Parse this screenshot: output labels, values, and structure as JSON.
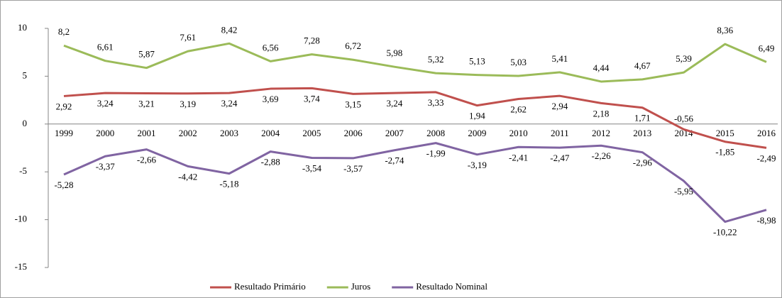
{
  "chart_data": {
    "type": "line",
    "categories": [
      "1999",
      "2000",
      "2001",
      "2002",
      "2003",
      "2004",
      "2005",
      "2006",
      "2007",
      "2008",
      "2009",
      "2010",
      "2011",
      "2012",
      "2013",
      "2014",
      "2015",
      "2016"
    ],
    "series": [
      {
        "name": "Resultado Primário",
        "color": "#c0504d",
        "values": [
          2.92,
          3.24,
          3.21,
          3.19,
          3.24,
          3.69,
          3.74,
          3.15,
          3.24,
          3.33,
          1.94,
          2.62,
          2.94,
          2.18,
          1.71,
          -0.56,
          -1.85,
          -2.49
        ],
        "value_labels": [
          "2,92",
          "3,24",
          "3,21",
          "3,19",
          "3,24",
          "3,69",
          "3,74",
          "3,15",
          "3,24",
          "3,33",
          "1,94",
          "2,62",
          "2,94",
          "2,18",
          "1,71",
          "-0,56",
          "-1,85",
          "-2,49"
        ]
      },
      {
        "name": "Juros",
        "color": "#9bbb59",
        "values": [
          8.2,
          6.61,
          5.87,
          7.61,
          8.42,
          6.56,
          7.28,
          6.72,
          5.98,
          5.32,
          5.13,
          5.03,
          5.41,
          4.44,
          4.67,
          5.39,
          8.36,
          6.49
        ],
        "value_labels": [
          "8,2",
          "6,61",
          "5,87",
          "7,61",
          "8,42",
          "6,56",
          "7,28",
          "6,72",
          "5,98",
          "5,32",
          "5,13",
          "5,03",
          "5,41",
          "4,44",
          "4,67",
          "5,39",
          "8,36",
          "6,49"
        ]
      },
      {
        "name": "Resultado Nominal",
        "color": "#8064a2",
        "values": [
          -5.28,
          -3.37,
          -2.66,
          -4.42,
          -5.18,
          -2.88,
          -3.54,
          -3.57,
          -2.74,
          -1.99,
          -3.19,
          -2.41,
          -2.47,
          -2.26,
          -2.96,
          -5.95,
          -10.22,
          -8.98
        ],
        "value_labels": [
          "-5,28",
          "-3,37",
          "-2,66",
          "-4,42",
          "-5,18",
          "-2,88",
          "-3,54",
          "-3,57",
          "-2,74",
          "-1,99",
          "-3,19",
          "-2,41",
          "-2,47",
          "-2,26",
          "-2,96",
          "-5,95",
          "-10,22",
          "-8,98"
        ]
      }
    ],
    "ylim": [
      -15,
      10
    ],
    "yticks": [
      -15,
      -10,
      -5,
      0,
      5,
      10
    ],
    "legend": "bottom"
  }
}
